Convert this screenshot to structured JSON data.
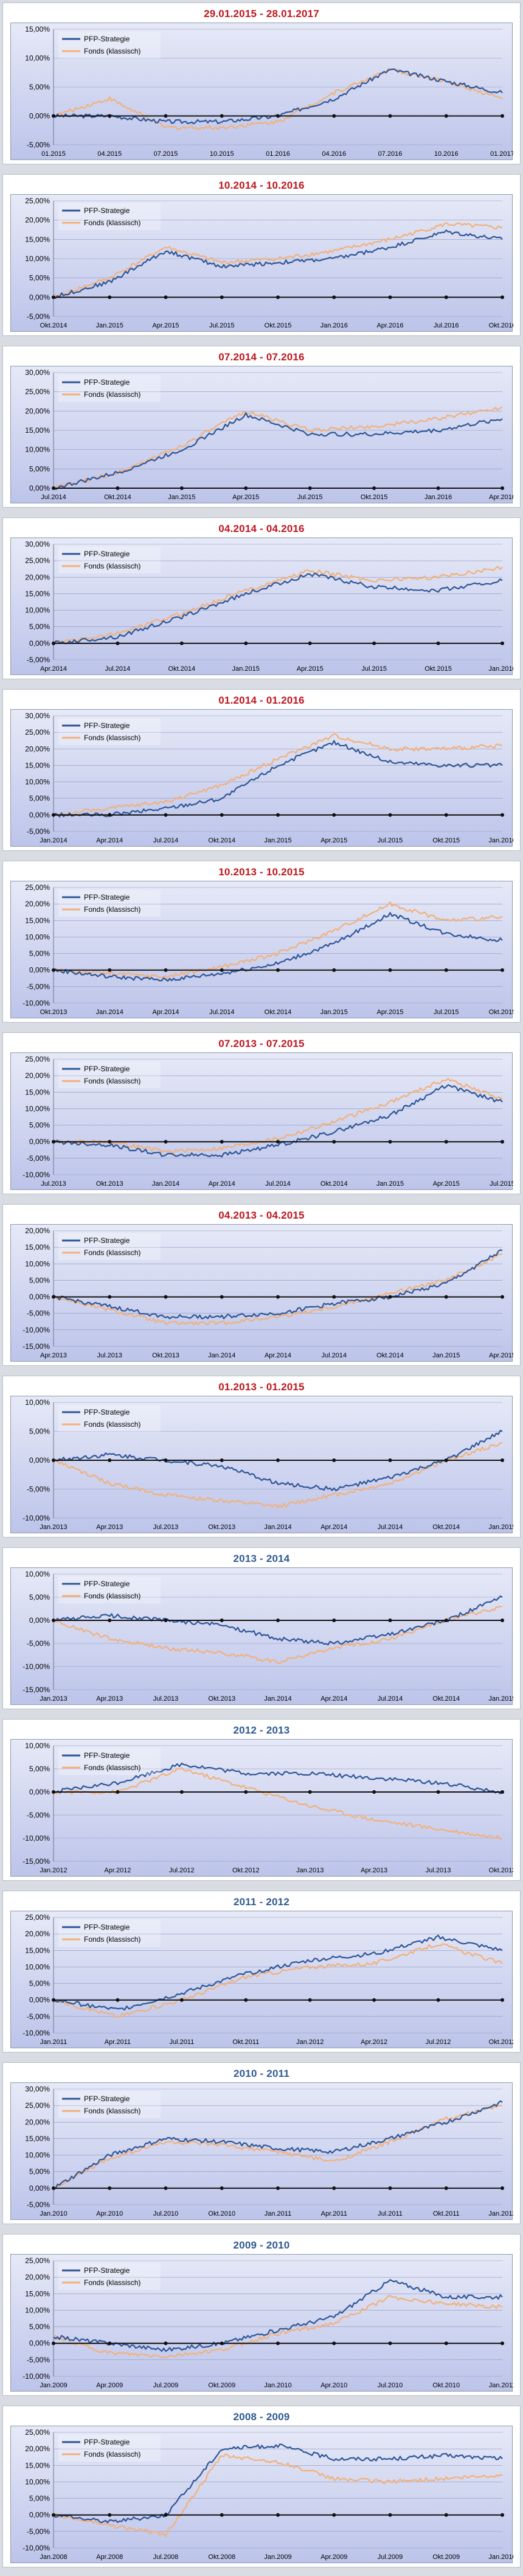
{
  "colors": {
    "pfp": "#2e5597",
    "fonds": "#f3b07a",
    "title_red": "#c0151d",
    "title_blue": "#2f5a93",
    "zero_line": "#111111",
    "grid": "#8d95ba"
  },
  "chart_data": [
    {
      "type": "line",
      "title": "29.01.2015 - 28.01.2017",
      "title_color": "#c0151d",
      "x": [
        "01.2015",
        "04.2015",
        "07.2015",
        "10.2015",
        "01.2016",
        "04.2016",
        "07.2016",
        "10.2016",
        "01.2017"
      ],
      "ylim": [
        -5,
        15
      ],
      "yticks": [
        "-5,00%",
        "0,00%",
        "5,00%",
        "10,00%",
        "15,00%"
      ],
      "legend": [
        "PFP-Strategie",
        "Fonds (klassisch)"
      ],
      "series": [
        {
          "name": "PFP-Strategie",
          "values": [
            0,
            0,
            -1,
            -1,
            0,
            3,
            8,
            6,
            4
          ]
        },
        {
          "name": "Fonds (klassisch)",
          "values": [
            0,
            3,
            -2,
            -2,
            -1,
            4,
            8,
            6,
            3
          ]
        }
      ]
    },
    {
      "type": "line",
      "title": "10.2014 - 10.2016",
      "title_color": "#c0151d",
      "x": [
        "Okt.2014",
        "Jan.2015",
        "Apr.2015",
        "Jul.2015",
        "Okt.2015",
        "Jan.2016",
        "Apr.2016",
        "Jul.2016",
        "Okt.2016"
      ],
      "ylim": [
        -5,
        25
      ],
      "yticks": [
        "-5,00%",
        "0,00%",
        "5,00%",
        "10,00%",
        "15,00%",
        "20,00%",
        "25,00%"
      ],
      "legend": [
        "PFP-Strategie",
        "Fonds (klassisch)"
      ],
      "series": [
        {
          "name": "PFP-Strategie",
          "values": [
            0,
            4,
            12,
            8,
            9,
            10,
            13,
            17,
            15
          ]
        },
        {
          "name": "Fonds (klassisch)",
          "values": [
            0,
            5,
            13,
            9,
            10,
            12,
            15,
            19,
            18
          ]
        }
      ]
    },
    {
      "type": "line",
      "title": "07.2014 - 07.2016",
      "title_color": "#c0151d",
      "x": [
        "Jul.2014",
        "Okt.2014",
        "Jan.2015",
        "Apr.2015",
        "Jul.2015",
        "Okt.2015",
        "Jan.2016",
        "Apr.2016"
      ],
      "ylim": [
        0,
        30
      ],
      "yticks": [
        "0,00%",
        "5,00%",
        "10,00%",
        "15,00%",
        "20,00%",
        "25,00%",
        "30,00%"
      ],
      "legend": [
        "PFP-Strategie",
        "Fonds (klassisch)"
      ],
      "series": [
        {
          "name": "PFP-Strategie",
          "values": [
            0,
            4,
            10,
            19,
            14,
            14,
            15,
            18
          ]
        },
        {
          "name": "Fonds (klassisch)",
          "values": [
            0,
            4,
            11,
            20,
            15,
            16,
            18,
            21
          ]
        }
      ]
    },
    {
      "type": "line",
      "title": "04.2014 - 04.2016",
      "title_color": "#c0151d",
      "x": [
        "Apr.2014",
        "Jul.2014",
        "Okt.2014",
        "Jan.2015",
        "Apr.2015",
        "Jul.2015",
        "Okt.2015",
        "Jan.2016"
      ],
      "ylim": [
        -5,
        30
      ],
      "yticks": [
        "-5,00%",
        "0,00%",
        "5,00%",
        "10,00%",
        "15,00%",
        "20,00%",
        "25,00%",
        "30,00%"
      ],
      "legend": [
        "PFP-Strategie",
        "Fonds (klassisch)"
      ],
      "series": [
        {
          "name": "PFP-Strategie",
          "values": [
            0,
            2,
            8,
            15,
            21,
            17,
            16,
            19
          ]
        },
        {
          "name": "Fonds (klassisch)",
          "values": [
            0,
            3,
            9,
            16,
            22,
            19,
            20,
            23
          ]
        }
      ]
    },
    {
      "type": "line",
      "title": "01.2014 - 01.2016",
      "title_color": "#c0151d",
      "x": [
        "Jan.2014",
        "Apr.2014",
        "Jul.2014",
        "Okt.2014",
        "Jan.2015",
        "Apr.2015",
        "Jul.2015",
        "Okt.2015",
        "Jan.2016"
      ],
      "ylim": [
        -5,
        30
      ],
      "yticks": [
        "-5,00%",
        "0,00%",
        "5,00%",
        "10,00%",
        "15,00%",
        "20,00%",
        "25,00%",
        "30,00%"
      ],
      "legend": [
        "PFP-Strategie",
        "Fonds (klassisch)"
      ],
      "series": [
        {
          "name": "PFP-Strategie",
          "values": [
            0,
            0,
            2,
            5,
            15,
            22,
            16,
            15,
            15
          ]
        },
        {
          "name": "Fonds (klassisch)",
          "values": [
            0,
            2,
            4,
            9,
            17,
            24,
            20,
            20,
            21
          ]
        }
      ]
    },
    {
      "type": "line",
      "title": "10.2013 - 10.2015",
      "title_color": "#c0151d",
      "x": [
        "Okt.2013",
        "Jan.2014",
        "Apr.2014",
        "Jul.2014",
        "Okt.2014",
        "Jan.2015",
        "Apr.2015",
        "Jul.2015",
        "Okt.2015"
      ],
      "ylim": [
        -10,
        25
      ],
      "yticks": [
        "-10,00%",
        "-5,00%",
        "0,00%",
        "5,00%",
        "10,00%",
        "15,00%",
        "20,00%",
        "25,00%"
      ],
      "legend": [
        "PFP-Strategie",
        "Fonds (klassisch)"
      ],
      "series": [
        {
          "name": "PFP-Strategie",
          "values": [
            0,
            -2,
            -3,
            -1,
            2,
            8,
            17,
            11,
            9
          ]
        },
        {
          "name": "Fonds (klassisch)",
          "values": [
            0,
            -1,
            -2,
            1,
            5,
            12,
            20,
            15,
            16
          ]
        }
      ]
    },
    {
      "type": "line",
      "title": "07.2013 - 07.2015",
      "title_color": "#c0151d",
      "x": [
        "Jul.2013",
        "Okt.2013",
        "Jan.2014",
        "Apr.2014",
        "Jul.2014",
        "Okt.2014",
        "Jan.2015",
        "Apr.2015",
        "Jul.2015"
      ],
      "ylim": [
        -10,
        25
      ],
      "yticks": [
        "-10,00%",
        "-5,00%",
        "0,00%",
        "5,00%",
        "10,00%",
        "15,00%",
        "20,00%",
        "25,00%"
      ],
      "legend": [
        "PFP-Strategie",
        "Fonds (klassisch)"
      ],
      "series": [
        {
          "name": "PFP-Strategie",
          "values": [
            0,
            -1,
            -4,
            -4,
            -1,
            3,
            8,
            17,
            12
          ]
        },
        {
          "name": "Fonds (klassisch)",
          "values": [
            0,
            0,
            -3,
            -2,
            1,
            6,
            12,
            19,
            13
          ]
        }
      ]
    },
    {
      "type": "line",
      "title": "04.2013 - 04.2015",
      "title_color": "#c0151d",
      "x": [
        "Apr.2013",
        "Jul.2013",
        "Okt.2013",
        "Jan.2014",
        "Apr.2014",
        "Jul.2014",
        "Okt.2014",
        "Jan.2015",
        "Apr.2015"
      ],
      "ylim": [
        -15,
        20
      ],
      "yticks": [
        "-15,00%",
        "-10,00%",
        "-5,00%",
        "0,00%",
        "5,00%",
        "10,00%",
        "15,00%",
        "20,00%"
      ],
      "legend": [
        "PFP-Strategie",
        "Fonds (klassisch)"
      ],
      "series": [
        {
          "name": "PFP-Strategie",
          "values": [
            0,
            -3,
            -6,
            -6,
            -5,
            -2,
            0,
            4,
            14
          ]
        },
        {
          "name": "Fonds (klassisch)",
          "values": [
            0,
            -4,
            -8,
            -8,
            -6,
            -3,
            1,
            5,
            13
          ]
        }
      ]
    },
    {
      "type": "line",
      "title": "01.2013 - 01.2015",
      "title_color": "#c0151d",
      "x": [
        "Jan.2013",
        "Apr.2013",
        "Jul.2013",
        "Okt.2013",
        "Jan.2014",
        "Apr.2014",
        "Jul.2014",
        "Okt.2014",
        "Jan.2015"
      ],
      "ylim": [
        -10,
        10
      ],
      "yticks": [
        "-10,00%",
        "-5,00%",
        "0,00%",
        "5,00%",
        "10,00%"
      ],
      "legend": [
        "PFP-Strategie",
        "Fonds (klassisch)"
      ],
      "series": [
        {
          "name": "PFP-Strategie",
          "values": [
            0,
            1,
            0,
            -1,
            -4,
            -5,
            -3,
            0,
            5
          ]
        },
        {
          "name": "Fonds (klassisch)",
          "values": [
            0,
            -4,
            -6,
            -7,
            -8,
            -6,
            -4,
            0,
            3
          ]
        }
      ]
    },
    {
      "type": "line",
      "title": "2013 - 2014",
      "title_color": "#2f5a93",
      "x": [
        "Jan.2013",
        "Apr.2013",
        "Jul.2013",
        "Okt.2013",
        "Jan.2014",
        "Apr.2014",
        "Jul.2014",
        "Okt.2014",
        "Jan.2015"
      ],
      "ylim": [
        -15,
        10
      ],
      "yticks": [
        "-15,00%",
        "-10,00%",
        "-5,00%",
        "0,00%",
        "5,00%",
        "10,00%"
      ],
      "legend": [
        "PFP-Strategie",
        "Fonds (klassisch)"
      ],
      "series": [
        {
          "name": "PFP-Strategie",
          "values": [
            0,
            1,
            0,
            -1,
            -4,
            -5,
            -3,
            0,
            5
          ]
        },
        {
          "name": "Fonds (klassisch)",
          "values": [
            0,
            -4,
            -6,
            -7,
            -9,
            -6,
            -4,
            0,
            3
          ]
        }
      ]
    },
    {
      "type": "line",
      "title": "2012 - 2013",
      "title_color": "#2f5a93",
      "x": [
        "Jan.2012",
        "Apr.2012",
        "Jul.2012",
        "Okt.2012",
        "Jan.2013",
        "Apr.2013",
        "Jul.2013",
        "Okt.2013"
      ],
      "ylim": [
        -15,
        10
      ],
      "yticks": [
        "-15,00%",
        "-10,00%",
        "-5,00%",
        "0,00%",
        "5,00%",
        "10,00%"
      ],
      "legend": [
        "PFP-Strategie",
        "Fonds (klassisch)"
      ],
      "series": [
        {
          "name": "PFP-Strategie",
          "values": [
            0,
            2,
            6,
            4,
            4,
            3,
            2,
            0
          ]
        },
        {
          "name": "Fonds (klassisch)",
          "values": [
            0,
            0,
            5,
            1,
            -3,
            -6,
            -8,
            -10
          ]
        }
      ]
    },
    {
      "type": "line",
      "title": "2011 - 2012",
      "title_color": "#2f5a93",
      "x": [
        "Jan.2011",
        "Apr.2011",
        "Jul.2011",
        "Okt.2011",
        "Jan.2012",
        "Apr.2012",
        "Jul.2012",
        "Okt.2012"
      ],
      "ylim": [
        -10,
        25
      ],
      "yticks": [
        "-10,00%",
        "-5,00%",
        "0,00%",
        "5,00%",
        "10,00%",
        "15,00%",
        "20,00%",
        "25,00%"
      ],
      "legend": [
        "PFP-Strategie",
        "Fonds (klassisch)"
      ],
      "series": [
        {
          "name": "PFP-Strategie",
          "values": [
            0,
            -3,
            2,
            8,
            12,
            14,
            19,
            15
          ]
        },
        {
          "name": "Fonds (klassisch)",
          "values": [
            0,
            -5,
            0,
            7,
            10,
            11,
            17,
            11
          ]
        }
      ]
    },
    {
      "type": "line",
      "title": "2010 - 2011",
      "title_color": "#2f5a93",
      "x": [
        "Jan.2010",
        "Apr.2010",
        "Jul.2010",
        "Okt.2010",
        "Jan.2011",
        "Apr.2011",
        "Jul.2011",
        "Okt.2011",
        "Jan.2012"
      ],
      "ylim": [
        -5,
        30
      ],
      "yticks": [
        "-5,00%",
        "0,00%",
        "5,00%",
        "10,00%",
        "15,00%",
        "20,00%",
        "25,00%",
        "30,00%"
      ],
      "legend": [
        "PFP-Strategie",
        "Fonds (klassisch)"
      ],
      "series": [
        {
          "name": "PFP-Strategie",
          "values": [
            0,
            10,
            15,
            14,
            12,
            11,
            15,
            20,
            26
          ]
        },
        {
          "name": "Fonds (klassisch)",
          "values": [
            0,
            9,
            14,
            13,
            11,
            8,
            14,
            21,
            25
          ]
        }
      ]
    },
    {
      "type": "line",
      "title": "2009 - 2010",
      "title_color": "#2f5a93",
      "x": [
        "Jan.2009",
        "Apr.2009",
        "Jul.2009",
        "Okt.2009",
        "Jan.2010",
        "Apr.2010",
        "Jul.2010",
        "Okt.2010",
        "Jan.2011"
      ],
      "ylim": [
        -10,
        25
      ],
      "yticks": [
        "-10,00%",
        "-5,00%",
        "0,00%",
        "5,00%",
        "10,00%",
        "15,00%",
        "20,00%",
        "25,00%"
      ],
      "legend": [
        "PFP-Strategie",
        "Fonds (klassisch)"
      ],
      "series": [
        {
          "name": "PFP-Strategie",
          "values": [
            2,
            0,
            -2,
            0,
            4,
            8,
            19,
            14,
            14
          ]
        },
        {
          "name": "Fonds (klassisch)",
          "values": [
            2,
            -3,
            -4,
            -2,
            3,
            6,
            14,
            12,
            11
          ]
        }
      ]
    },
    {
      "type": "line",
      "title": "2008 - 2009",
      "title_color": "#2f5a93",
      "x": [
        "Jan.2008",
        "Apr.2008",
        "Jul.2008",
        "Okt.2008",
        "Jan.2009",
        "Apr.2009",
        "Jul.2009",
        "Okt.2009",
        "Jan.2010"
      ],
      "ylim": [
        -10,
        25
      ],
      "yticks": [
        "-10,00%",
        "-5,00%",
        "0,00%",
        "5,00%",
        "10,00%",
        "15,00%",
        "20,00%",
        "25,00%"
      ],
      "legend": [
        "PFP-Strategie",
        "Fonds (klassisch)"
      ],
      "series": [
        {
          "name": "PFP-Strategie",
          "values": [
            0,
            -2,
            0,
            20,
            21,
            17,
            17,
            18,
            17
          ]
        },
        {
          "name": "Fonds (klassisch)",
          "values": [
            0,
            -3,
            -6,
            18,
            16,
            11,
            10,
            11,
            12
          ]
        }
      ]
    }
  ]
}
